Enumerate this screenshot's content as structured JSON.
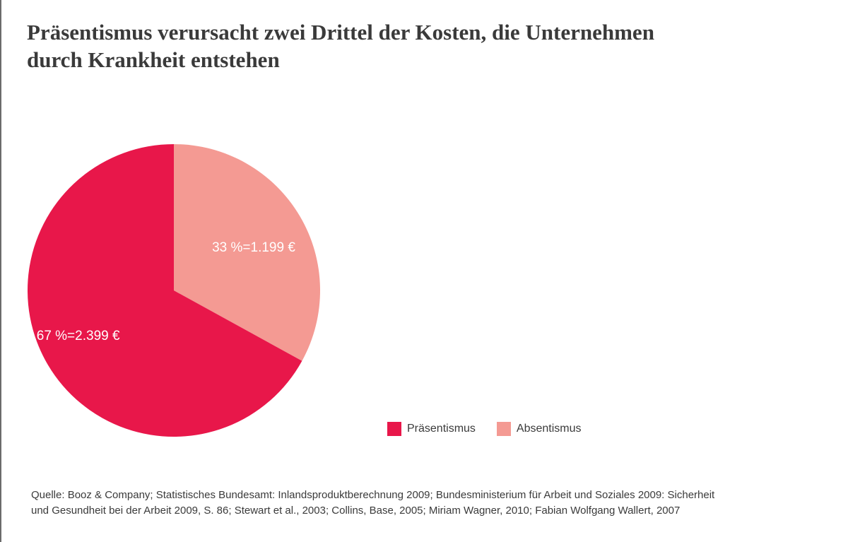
{
  "chart_data": {
    "type": "pie",
    "title_lines": [
      "Präsentismus verursacht zwei Drittel der Kosten, die Unternehmen",
      "durch Krankheit entstehen"
    ],
    "slices": [
      {
        "name": "Absentismus",
        "value": 33,
        "label": "33 %=1.199 €",
        "color": "#f49a93"
      },
      {
        "name": "Präsentismus",
        "value": 67,
        "label": "67 %=2.399 €",
        "color": "#e8174a"
      }
    ],
    "legend": [
      {
        "label": "Präsentismus",
        "color": "#e8174a"
      },
      {
        "label": "Absentismus",
        "color": "#f49a93"
      }
    ],
    "legend_position": "bottom-right",
    "start_angle_deg": 0,
    "direction": "clockwise"
  },
  "source": {
    "line1": "Quelle: Booz & Company; Statistisches Bundesamt: Inlandsproduktberechnung 2009; Bundesministerium für Arbeit und Soziales 2009: Sicherheit",
    "line2": "und Gesundheit bei der Arbeit 2009, S. 86; Stewart et al., 2003; Collins, Base, 2005; Miriam Wagner, 2010; Fabian Wolfgang Wallert, 2007"
  }
}
